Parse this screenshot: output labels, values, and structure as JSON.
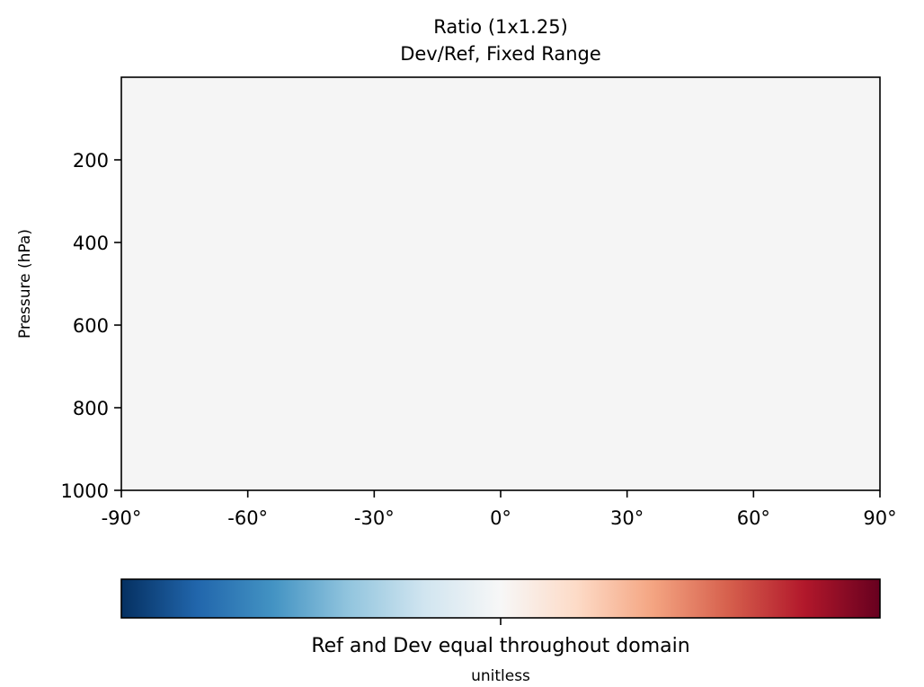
{
  "chart_data": {
    "type": "heatmap",
    "title": "Ratio (1x1.25)",
    "subtitle": "Dev/Ref, Fixed Range",
    "xlabel": "",
    "ylabel": "Pressure (hPa)",
    "x_ticks": [
      -90,
      -60,
      -30,
      0,
      30,
      60,
      90
    ],
    "x_tick_labels": [
      "-90°",
      "-60°",
      "-30°",
      "0°",
      "30°",
      "60°",
      "90°"
    ],
    "xlim": [
      -90,
      90
    ],
    "y_ticks": [
      200,
      400,
      600,
      800,
      1000
    ],
    "y_tick_labels": [
      "200",
      "400",
      "600",
      "800",
      "1000"
    ],
    "ylim": [
      1000,
      0
    ],
    "y_inverted": true,
    "grid": false,
    "field_value": 1.0,
    "field_color": "#f5f5f5",
    "colorbar": {
      "orientation": "horizontal",
      "colormap": "RdBu_r",
      "colors": [
        "#053061",
        "#2166ac",
        "#4393c3",
        "#92c5de",
        "#d1e5f0",
        "#f7f7f7",
        "#fddbc7",
        "#f4a582",
        "#d6604d",
        "#b2182b",
        "#67001f"
      ],
      "tick_value": 1.0,
      "label": "Ref and Dev equal throughout domain",
      "units": "unitless"
    }
  }
}
